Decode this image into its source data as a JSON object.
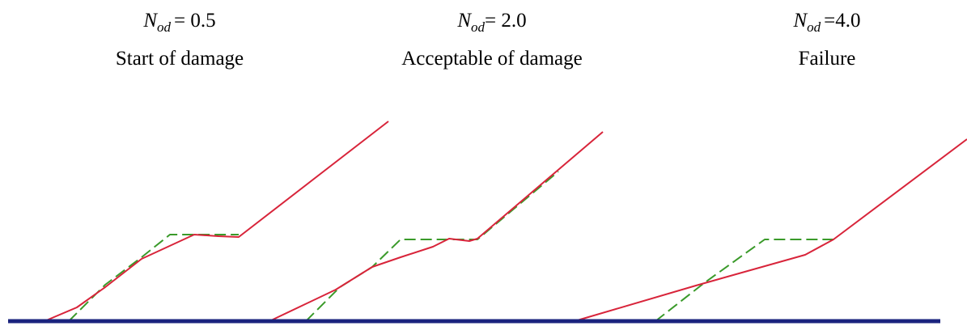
{
  "panels": [
    {
      "symbol": "N",
      "subscript": "od",
      "value": "= 0.5",
      "caption": "Start of damage"
    },
    {
      "symbol": "N",
      "subscript": "od",
      "value": "= 2.0",
      "caption": "Acceptable of damage"
    },
    {
      "symbol": "N",
      "subscript": "od",
      "value": "=4.0",
      "caption": "Failure"
    }
  ]
}
